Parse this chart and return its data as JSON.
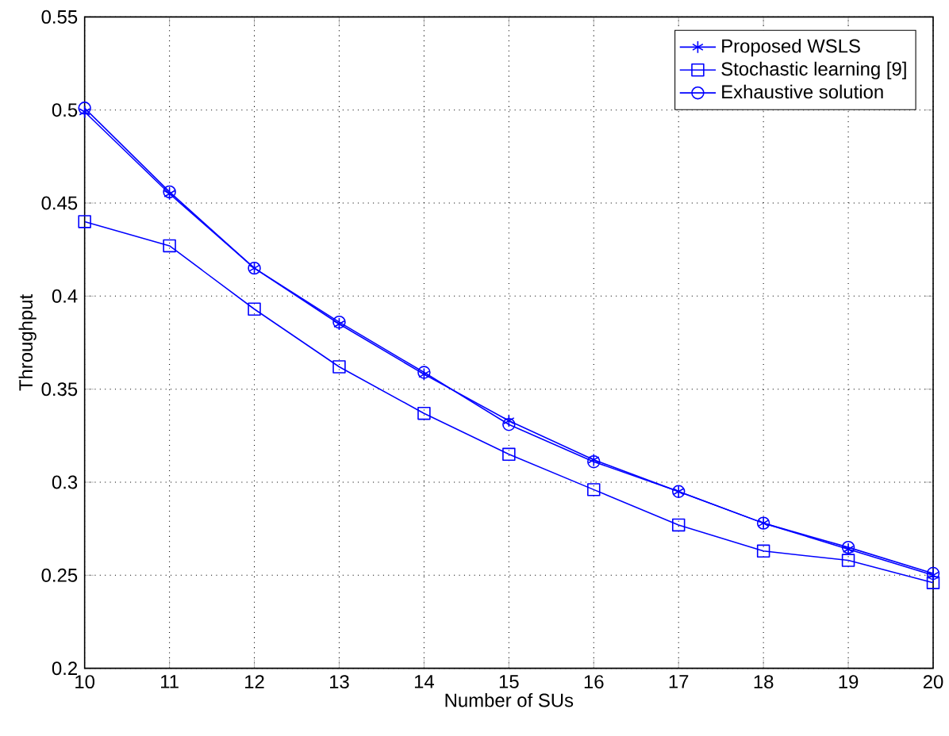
{
  "chart_data": {
    "type": "line",
    "xlabel": "Number of SUs",
    "ylabel": "Throughput",
    "x": [
      10,
      11,
      12,
      13,
      14,
      15,
      16,
      17,
      18,
      19,
      20
    ],
    "series": [
      {
        "name": "Proposed WSLS",
        "color": "#0000ff",
        "marker": "cross",
        "values": [
          0.499,
          0.455,
          0.415,
          0.385,
          0.358,
          0.333,
          0.312,
          0.295,
          0.278,
          0.264,
          0.25
        ]
      },
      {
        "name": "Stochastic learning [9]",
        "color": "#0000ff",
        "marker": "square",
        "values": [
          0.44,
          0.427,
          0.393,
          0.362,
          0.337,
          0.315,
          0.296,
          0.277,
          0.263,
          0.258,
          0.246
        ]
      },
      {
        "name": "Exhaustive solution",
        "color": "#0000ff",
        "marker": "circle",
        "values": [
          0.501,
          0.456,
          0.415,
          0.386,
          0.359,
          0.331,
          0.311,
          0.295,
          0.278,
          0.265,
          0.251
        ]
      }
    ],
    "xlim": [
      10,
      20
    ],
    "xticks": [
      10,
      11,
      12,
      13,
      14,
      15,
      16,
      17,
      18,
      19,
      20
    ],
    "ylim": [
      0.2,
      0.55
    ],
    "yticks": [
      0.2,
      0.25,
      0.3,
      0.35,
      0.4,
      0.45,
      0.5,
      0.55
    ],
    "grid": true,
    "legend": "top right",
    "line_style": "solid"
  }
}
